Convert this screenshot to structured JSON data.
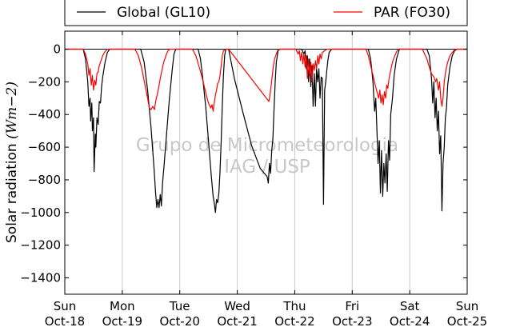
{
  "chart_data": {
    "type": "line",
    "title": "",
    "xlabel": "",
    "ylabel": "Solar radiation (W m−2)",
    "ylabel_parts": {
      "text": "Solar radiation ",
      "math": "(Wm−2)"
    },
    "ylim": [
      -1500,
      110
    ],
    "yticks": [
      0,
      -200,
      -400,
      -600,
      -800,
      -1000,
      -1200,
      -1400
    ],
    "ytick_labels": [
      "0",
      "−200",
      "−400",
      "−600",
      "−800",
      "−1000",
      "−1200",
      "−1400"
    ],
    "xlim": [
      0,
      7
    ],
    "xticks": [
      {
        "x": 0,
        "line1": "Sun",
        "line2": "Oct-18"
      },
      {
        "x": 1,
        "line1": "Mon",
        "line2": "Oct-19"
      },
      {
        "x": 2,
        "line1": "Tue",
        "line2": "Oct-20"
      },
      {
        "x": 3,
        "line1": "Wed",
        "line2": "Oct-21"
      },
      {
        "x": 4,
        "line1": "Thu",
        "line2": "Oct-22"
      },
      {
        "x": 5,
        "line1": "Fri",
        "line2": "Oct-23"
      },
      {
        "x": 6,
        "line1": "Sat",
        "line2": "Oct-24"
      },
      {
        "x": 7,
        "line1": "Sun",
        "line2": "Oct-25"
      }
    ],
    "grid": "vertical",
    "legend_position": "top, above plot",
    "watermark": [
      "Grupo de Micrometeorologia",
      "IAG / USP"
    ],
    "series": [
      {
        "name": "Global (GL10)",
        "color": "#000000",
        "points": [
          [
            0,
            0
          ],
          [
            0.32,
            0
          ],
          [
            0.36,
            -60
          ],
          [
            0.4,
            -200
          ],
          [
            0.42,
            -350
          ],
          [
            0.44,
            -300
          ],
          [
            0.45,
            -440
          ],
          [
            0.47,
            -330
          ],
          [
            0.48,
            -500
          ],
          [
            0.5,
            -420
          ],
          [
            0.51,
            -750
          ],
          [
            0.53,
            -520
          ],
          [
            0.54,
            -600
          ],
          [
            0.56,
            -420
          ],
          [
            0.58,
            -460
          ],
          [
            0.6,
            -320
          ],
          [
            0.62,
            -330
          ],
          [
            0.64,
            -230
          ],
          [
            0.66,
            -170
          ],
          [
            0.7,
            -80
          ],
          [
            0.74,
            -20
          ],
          [
            0.78,
            0
          ],
          [
            1.32,
            0
          ],
          [
            1.38,
            -80
          ],
          [
            1.44,
            -250
          ],
          [
            1.5,
            -480
          ],
          [
            1.55,
            -720
          ],
          [
            1.58,
            -880
          ],
          [
            1.6,
            -970
          ],
          [
            1.62,
            -920
          ],
          [
            1.64,
            -970
          ],
          [
            1.66,
            -890
          ],
          [
            1.68,
            -960
          ],
          [
            1.7,
            -820
          ],
          [
            1.73,
            -700
          ],
          [
            1.77,
            -520
          ],
          [
            1.82,
            -300
          ],
          [
            1.87,
            -120
          ],
          [
            1.9,
            -30
          ],
          [
            1.93,
            0
          ],
          [
            2.32,
            0
          ],
          [
            2.36,
            -60
          ],
          [
            2.4,
            -180
          ],
          [
            2.45,
            -350
          ],
          [
            2.5,
            -560
          ],
          [
            2.55,
            -780
          ],
          [
            2.58,
            -900
          ],
          [
            2.6,
            -940
          ],
          [
            2.62,
            -1000
          ],
          [
            2.64,
            -920
          ],
          [
            2.66,
            -940
          ],
          [
            2.68,
            -880
          ],
          [
            2.7,
            -750
          ],
          [
            2.72,
            -560
          ],
          [
            2.74,
            -340
          ],
          [
            2.76,
            -160
          ],
          [
            2.78,
            -40
          ],
          [
            2.8,
            0
          ],
          [
            2.85,
            0
          ],
          [
            2.95,
            -180
          ],
          [
            3.1,
            -390
          ],
          [
            3.25,
            -590
          ],
          [
            3.4,
            -730
          ],
          [
            3.52,
            -780
          ],
          [
            3.54,
            -820
          ],
          [
            3.56,
            -700
          ],
          [
            3.58,
            -760
          ],
          [
            3.6,
            -620
          ],
          [
            3.62,
            -550
          ],
          [
            3.64,
            -360
          ],
          [
            3.66,
            -200
          ],
          [
            3.68,
            -80
          ],
          [
            3.71,
            -10
          ],
          [
            3.74,
            0
          ],
          [
            4.12,
            0
          ],
          [
            4.16,
            -30
          ],
          [
            4.18,
            -10
          ],
          [
            4.2,
            -120
          ],
          [
            4.22,
            -40
          ],
          [
            4.24,
            -200
          ],
          [
            4.26,
            -60
          ],
          [
            4.28,
            -230
          ],
          [
            4.3,
            -100
          ],
          [
            4.32,
            -350
          ],
          [
            4.34,
            -150
          ],
          [
            4.36,
            -350
          ],
          [
            4.38,
            -120
          ],
          [
            4.4,
            -200
          ],
          [
            4.42,
            -120
          ],
          [
            4.44,
            -300
          ],
          [
            4.46,
            -170
          ],
          [
            4.48,
            -180
          ],
          [
            4.5,
            -950
          ],
          [
            4.52,
            -250
          ],
          [
            4.54,
            -200
          ],
          [
            4.56,
            -120
          ],
          [
            4.58,
            -60
          ],
          [
            4.6,
            -20
          ],
          [
            4.64,
            0
          ],
          [
            5.28,
            0
          ],
          [
            5.32,
            -60
          ],
          [
            5.36,
            -200
          ],
          [
            5.39,
            -380
          ],
          [
            5.41,
            -300
          ],
          [
            5.43,
            -500
          ],
          [
            5.45,
            -700
          ],
          [
            5.47,
            -560
          ],
          [
            5.49,
            -880
          ],
          [
            5.51,
            -620
          ],
          [
            5.53,
            -900
          ],
          [
            5.55,
            -700
          ],
          [
            5.57,
            -820
          ],
          [
            5.59,
            -640
          ],
          [
            5.61,
            -870
          ],
          [
            5.63,
            -560
          ],
          [
            5.65,
            -680
          ],
          [
            5.67,
            -400
          ],
          [
            5.7,
            -300
          ],
          [
            5.73,
            -160
          ],
          [
            5.77,
            -60
          ],
          [
            5.82,
            0
          ],
          [
            6.3,
            0
          ],
          [
            6.34,
            -40
          ],
          [
            6.38,
            -180
          ],
          [
            6.4,
            -330
          ],
          [
            6.42,
            -200
          ],
          [
            6.44,
            -420
          ],
          [
            6.46,
            -300
          ],
          [
            6.48,
            -500
          ],
          [
            6.5,
            -380
          ],
          [
            6.52,
            -640
          ],
          [
            6.54,
            -530
          ],
          [
            6.55,
            -760
          ],
          [
            6.56,
            -990
          ],
          [
            6.58,
            -700
          ],
          [
            6.6,
            -600
          ],
          [
            6.62,
            -420
          ],
          [
            6.64,
            -360
          ],
          [
            6.66,
            -220
          ],
          [
            6.7,
            -110
          ],
          [
            6.74,
            -40
          ],
          [
            6.78,
            -10
          ],
          [
            6.82,
            0
          ],
          [
            7,
            0
          ]
        ]
      },
      {
        "name": "PAR (FO30)",
        "color": "#ff0000",
        "points": [
          [
            0,
            0
          ],
          [
            0.32,
            0
          ],
          [
            0.36,
            -30
          ],
          [
            0.4,
            -90
          ],
          [
            0.42,
            -160
          ],
          [
            0.44,
            -120
          ],
          [
            0.46,
            -220
          ],
          [
            0.48,
            -160
          ],
          [
            0.5,
            -250
          ],
          [
            0.52,
            -190
          ],
          [
            0.54,
            -220
          ],
          [
            0.56,
            -150
          ],
          [
            0.58,
            -140
          ],
          [
            0.6,
            -100
          ],
          [
            0.63,
            -70
          ],
          [
            0.66,
            -40
          ],
          [
            0.7,
            -15
          ],
          [
            0.74,
            0
          ],
          [
            1.22,
            0
          ],
          [
            1.28,
            -40
          ],
          [
            1.34,
            -120
          ],
          [
            1.4,
            -230
          ],
          [
            1.44,
            -300
          ],
          [
            1.47,
            -360
          ],
          [
            1.5,
            -370
          ],
          [
            1.53,
            -350
          ],
          [
            1.56,
            -370
          ],
          [
            1.58,
            -320
          ],
          [
            1.62,
            -260
          ],
          [
            1.66,
            -180
          ],
          [
            1.72,
            -80
          ],
          [
            1.78,
            -20
          ],
          [
            1.82,
            0
          ],
          [
            2.22,
            0
          ],
          [
            2.28,
            -40
          ],
          [
            2.34,
            -110
          ],
          [
            2.4,
            -190
          ],
          [
            2.46,
            -280
          ],
          [
            2.5,
            -330
          ],
          [
            2.54,
            -360
          ],
          [
            2.56,
            -340
          ],
          [
            2.58,
            -380
          ],
          [
            2.6,
            -330
          ],
          [
            2.62,
            -280
          ],
          [
            2.64,
            -250
          ],
          [
            2.66,
            -210
          ],
          [
            2.68,
            -200
          ],
          [
            2.7,
            -160
          ],
          [
            2.72,
            -100
          ],
          [
            2.74,
            -40
          ],
          [
            2.76,
            -10
          ],
          [
            2.8,
            0
          ],
          [
            2.85,
            0
          ],
          [
            3.55,
            -320
          ],
          [
            3.57,
            -280
          ],
          [
            3.59,
            -220
          ],
          [
            3.61,
            -160
          ],
          [
            3.63,
            -100
          ],
          [
            3.65,
            -60
          ],
          [
            3.68,
            -30
          ],
          [
            3.7,
            -10
          ],
          [
            3.73,
            0
          ],
          [
            4.02,
            0
          ],
          [
            4.06,
            -30
          ],
          [
            4.08,
            -10
          ],
          [
            4.1,
            -70
          ],
          [
            4.12,
            -20
          ],
          [
            4.14,
            -90
          ],
          [
            4.16,
            -30
          ],
          [
            4.18,
            -110
          ],
          [
            4.2,
            -40
          ],
          [
            4.22,
            -180
          ],
          [
            4.24,
            -60
          ],
          [
            4.26,
            -160
          ],
          [
            4.28,
            -80
          ],
          [
            4.3,
            -200
          ],
          [
            4.32,
            -90
          ],
          [
            4.34,
            -130
          ],
          [
            4.36,
            -70
          ],
          [
            4.38,
            -120
          ],
          [
            4.4,
            -40
          ],
          [
            4.42,
            -90
          ],
          [
            4.44,
            -30
          ],
          [
            4.46,
            -60
          ],
          [
            4.48,
            -20
          ],
          [
            4.52,
            -10
          ],
          [
            4.56,
            0
          ],
          [
            5.24,
            0
          ],
          [
            5.28,
            -40
          ],
          [
            5.32,
            -100
          ],
          [
            5.36,
            -160
          ],
          [
            5.4,
            -220
          ],
          [
            5.43,
            -260
          ],
          [
            5.46,
            -300
          ],
          [
            5.48,
            -250
          ],
          [
            5.5,
            -330
          ],
          [
            5.52,
            -280
          ],
          [
            5.54,
            -340
          ],
          [
            5.56,
            -260
          ],
          [
            5.58,
            -300
          ],
          [
            5.6,
            -220
          ],
          [
            5.62,
            -240
          ],
          [
            5.64,
            -180
          ],
          [
            5.67,
            -130
          ],
          [
            5.7,
            -80
          ],
          [
            5.74,
            -40
          ],
          [
            5.78,
            -10
          ],
          [
            5.82,
            0
          ],
          [
            6.22,
            0
          ],
          [
            6.26,
            -30
          ],
          [
            6.3,
            -60
          ],
          [
            6.34,
            -110
          ],
          [
            6.38,
            -150
          ],
          [
            6.42,
            -170
          ],
          [
            6.45,
            -200
          ],
          [
            6.47,
            -180
          ],
          [
            6.5,
            -250
          ],
          [
            6.52,
            -200
          ],
          [
            6.54,
            -300
          ],
          [
            6.56,
            -350
          ],
          [
            6.58,
            -300
          ],
          [
            6.6,
            -200
          ],
          [
            6.62,
            -150
          ],
          [
            6.64,
            -110
          ],
          [
            6.66,
            -80
          ],
          [
            6.7,
            -40
          ],
          [
            6.74,
            -20
          ],
          [
            6.78,
            -5
          ],
          [
            6.82,
            0
          ],
          [
            7,
            0
          ]
        ]
      }
    ]
  }
}
